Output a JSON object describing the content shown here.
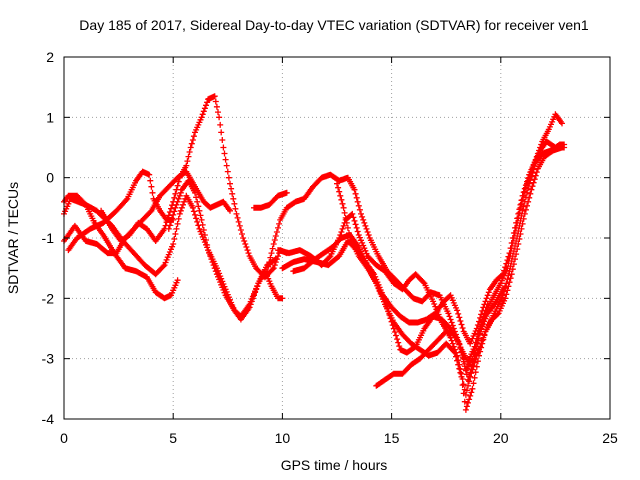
{
  "chart_data": {
    "type": "scatter",
    "title": "Day 185 of 2017, Sidereal Day-to-day VTEC variation (SDTVAR) for receiver ven1",
    "xlabel": "GPS time / hours",
    "ylabel": "SDTVAR / TECUs",
    "xlim": [
      0,
      25
    ],
    "ylim": [
      -4,
      2
    ],
    "xticks": [
      0,
      5,
      10,
      15,
      20,
      25
    ],
    "yticks": [
      -4,
      -3,
      -2,
      -1,
      0,
      1,
      2
    ],
    "xtick_labels": [
      "0",
      "5",
      "10",
      "15",
      "20",
      "25"
    ],
    "ytick_labels": [
      "-4",
      "-3",
      "-2",
      "-1",
      "0",
      "1",
      "2"
    ],
    "grid": true,
    "marker": "+",
    "color": "#ff0000",
    "series": [
      {
        "points": [
          [
            0.0,
            -0.6
          ],
          [
            0.3,
            -0.35
          ],
          [
            1.0,
            -0.45
          ],
          [
            1.5,
            -0.55
          ],
          [
            2.2,
            -0.8
          ],
          [
            2.7,
            -1.05
          ],
          [
            3.2,
            -1.25
          ],
          [
            3.7,
            -1.45
          ],
          [
            4.2,
            -1.6
          ],
          [
            4.6,
            -1.45
          ],
          [
            5.0,
            -1.1
          ],
          [
            5.3,
            -0.6
          ],
          [
            5.6,
            -0.3
          ],
          [
            5.9,
            -0.5
          ],
          [
            6.2,
            -0.85
          ],
          [
            6.6,
            -1.2
          ],
          [
            7.0,
            -1.5
          ],
          [
            7.4,
            -1.85
          ],
          [
            7.8,
            -2.2
          ],
          [
            8.1,
            -2.35
          ],
          [
            8.5,
            -2.15
          ],
          [
            8.9,
            -1.75
          ],
          [
            9.3,
            -1.45
          ],
          [
            9.7,
            -1.35
          ]
        ]
      },
      {
        "points": [
          [
            0.0,
            -0.4
          ],
          [
            0.2,
            -0.3
          ],
          [
            0.6,
            -0.3
          ],
          [
            1.0,
            -0.45
          ],
          [
            1.4,
            -0.75
          ],
          [
            1.8,
            -0.95
          ],
          [
            2.3,
            -1.25
          ],
          [
            2.8,
            -1.5
          ],
          [
            3.3,
            -1.55
          ],
          [
            3.8,
            -1.65
          ],
          [
            4.2,
            -1.9
          ],
          [
            4.6,
            -2.0
          ],
          [
            4.9,
            -1.95
          ],
          [
            5.2,
            -1.7
          ]
        ]
      },
      {
        "points": [
          [
            0.2,
            -1.2
          ],
          [
            0.6,
            -1.0
          ],
          [
            1.2,
            -0.85
          ],
          [
            1.8,
            -0.75
          ],
          [
            2.4,
            -0.55
          ],
          [
            2.9,
            -0.35
          ],
          [
            3.3,
            -0.05
          ],
          [
            3.6,
            0.1
          ],
          [
            3.9,
            0.05
          ],
          [
            4.1,
            -0.35
          ],
          [
            4.4,
            -0.55
          ],
          [
            4.7,
            -0.7
          ],
          [
            5.0,
            -0.7
          ]
        ]
      },
      {
        "points": [
          [
            0.0,
            -1.05
          ],
          [
            0.5,
            -0.8
          ],
          [
            1.0,
            -1.05
          ],
          [
            1.5,
            -1.1
          ],
          [
            2.0,
            -1.25
          ],
          [
            2.4,
            -1.25
          ],
          [
            2.8,
            -1.0
          ],
          [
            3.2,
            -0.85
          ],
          [
            3.6,
            -0.7
          ],
          [
            4.0,
            -0.55
          ],
          [
            4.4,
            -0.3
          ],
          [
            4.8,
            -0.15
          ],
          [
            5.2,
            0.0
          ],
          [
            5.6,
            0.1
          ],
          [
            6.0,
            -0.15
          ],
          [
            6.4,
            -0.4
          ],
          [
            6.7,
            -0.5
          ],
          [
            7.0,
            -0.45
          ],
          [
            7.3,
            -0.4
          ],
          [
            7.6,
            -0.55
          ]
        ]
      },
      {
        "points": [
          [
            1.7,
            -0.55
          ],
          [
            2.2,
            -0.85
          ],
          [
            2.6,
            -1.05
          ],
          [
            3.0,
            -0.95
          ],
          [
            3.4,
            -0.75
          ],
          [
            3.8,
            -0.85
          ],
          [
            4.2,
            -1.05
          ],
          [
            4.6,
            -0.85
          ],
          [
            5.0,
            -0.4
          ],
          [
            5.3,
            0.0
          ],
          [
            5.6,
            0.2
          ],
          [
            5.8,
            0.5
          ],
          [
            6.0,
            0.75
          ],
          [
            6.3,
            1.0
          ],
          [
            6.6,
            1.3
          ],
          [
            6.9,
            1.35
          ],
          [
            7.1,
            1.0
          ],
          [
            7.3,
            0.5
          ],
          [
            7.6,
            -0.1
          ],
          [
            7.9,
            -0.6
          ],
          [
            8.2,
            -1.0
          ],
          [
            8.5,
            -1.3
          ],
          [
            8.8,
            -1.5
          ],
          [
            9.2,
            -1.65
          ],
          [
            9.6,
            -1.5
          ],
          [
            9.9,
            -1.2
          ],
          [
            10.2,
            -1.25
          ]
        ]
      },
      {
        "points": [
          [
            4.8,
            -0.85
          ],
          [
            5.1,
            -0.5
          ],
          [
            5.4,
            -0.2
          ],
          [
            5.7,
            -0.05
          ],
          [
            6.0,
            -0.25
          ],
          [
            6.3,
            -0.7
          ],
          [
            6.6,
            -1.2
          ],
          [
            7.0,
            -1.6
          ],
          [
            7.4,
            -1.95
          ],
          [
            7.8,
            -2.2
          ],
          [
            8.1,
            -2.3
          ],
          [
            8.5,
            -2.1
          ],
          [
            8.9,
            -1.75
          ],
          [
            9.2,
            -1.55
          ],
          [
            9.5,
            -1.8
          ],
          [
            9.8,
            -2.0
          ],
          [
            10.0,
            -2.0
          ]
        ]
      },
      {
        "points": [
          [
            8.7,
            -0.5
          ],
          [
            9.0,
            -0.5
          ],
          [
            9.4,
            -0.45
          ],
          [
            9.8,
            -0.3
          ],
          [
            10.2,
            -0.25
          ]
        ]
      },
      {
        "points": [
          [
            9.3,
            -1.55
          ],
          [
            9.6,
            -1.1
          ],
          [
            9.9,
            -0.7
          ],
          [
            10.2,
            -0.5
          ],
          [
            10.6,
            -0.4
          ],
          [
            11.0,
            -0.35
          ],
          [
            11.4,
            -0.15
          ],
          [
            11.8,
            0.0
          ],
          [
            12.2,
            0.05
          ],
          [
            12.6,
            -0.05
          ],
          [
            13.0,
            0.0
          ],
          [
            13.3,
            -0.2
          ],
          [
            13.6,
            -0.6
          ],
          [
            14.0,
            -1.0
          ],
          [
            14.4,
            -1.3
          ],
          [
            14.8,
            -1.55
          ],
          [
            15.2,
            -1.7
          ],
          [
            15.6,
            -1.85
          ],
          [
            16.0,
            -2.0
          ],
          [
            16.4,
            -2.05
          ],
          [
            16.8,
            -1.9
          ],
          [
            17.2,
            -1.95
          ],
          [
            17.6,
            -2.25
          ],
          [
            18.0,
            -2.65
          ],
          [
            18.3,
            -3.0
          ],
          [
            18.5,
            -3.35
          ],
          [
            18.8,
            -3.0
          ],
          [
            19.1,
            -2.5
          ],
          [
            19.4,
            -2.15
          ],
          [
            19.7,
            -1.95
          ],
          [
            20.0,
            -1.75
          ],
          [
            20.3,
            -1.5
          ],
          [
            20.6,
            -1.0
          ],
          [
            20.9,
            -0.5
          ],
          [
            21.2,
            -0.1
          ],
          [
            21.5,
            0.2
          ],
          [
            21.8,
            0.45
          ],
          [
            22.1,
            0.6
          ],
          [
            22.5,
            0.5
          ],
          [
            22.9,
            0.5
          ]
        ]
      },
      {
        "points": [
          [
            9.8,
            -1.2
          ],
          [
            10.3,
            -1.25
          ],
          [
            10.8,
            -1.2
          ],
          [
            11.3,
            -1.3
          ],
          [
            11.8,
            -1.45
          ],
          [
            12.2,
            -1.3
          ],
          [
            12.6,
            -1.0
          ],
          [
            12.9,
            -0.7
          ],
          [
            13.2,
            -0.6
          ],
          [
            13.5,
            -0.95
          ],
          [
            13.9,
            -1.3
          ],
          [
            14.3,
            -1.45
          ],
          [
            14.7,
            -1.55
          ],
          [
            15.1,
            -1.75
          ],
          [
            15.5,
            -1.85
          ],
          [
            15.8,
            -1.7
          ],
          [
            16.1,
            -1.6
          ],
          [
            16.5,
            -1.75
          ],
          [
            16.9,
            -2.05
          ],
          [
            17.3,
            -2.4
          ],
          [
            17.7,
            -2.65
          ],
          [
            18.0,
            -2.95
          ],
          [
            18.2,
            -3.25
          ],
          [
            18.4,
            -3.6
          ],
          [
            18.6,
            -3.3
          ],
          [
            18.9,
            -2.95
          ],
          [
            19.3,
            -2.55
          ],
          [
            19.7,
            -2.25
          ],
          [
            20.1,
            -1.95
          ],
          [
            20.4,
            -1.55
          ],
          [
            20.7,
            -1.05
          ],
          [
            21.0,
            -0.55
          ],
          [
            21.3,
            -0.1
          ],
          [
            21.6,
            0.25
          ],
          [
            21.9,
            0.4
          ],
          [
            22.3,
            0.45
          ],
          [
            22.7,
            0.55
          ],
          [
            22.9,
            0.55
          ]
        ]
      },
      {
        "points": [
          [
            10.0,
            -1.5
          ],
          [
            10.5,
            -1.4
          ],
          [
            11.0,
            -1.35
          ],
          [
            11.6,
            -1.4
          ],
          [
            12.1,
            -1.45
          ],
          [
            12.6,
            -1.3
          ],
          [
            13.0,
            -1.05
          ],
          [
            13.4,
            -1.2
          ],
          [
            13.8,
            -1.4
          ],
          [
            14.2,
            -1.6
          ],
          [
            14.6,
            -1.95
          ],
          [
            15.0,
            -2.15
          ],
          [
            15.4,
            -2.3
          ],
          [
            15.8,
            -2.4
          ],
          [
            16.2,
            -2.4
          ],
          [
            16.6,
            -2.35
          ],
          [
            17.0,
            -2.25
          ],
          [
            17.4,
            -2.05
          ],
          [
            17.7,
            -1.95
          ],
          [
            18.0,
            -2.2
          ],
          [
            18.3,
            -2.55
          ],
          [
            18.6,
            -2.75
          ],
          [
            18.9,
            -2.5
          ],
          [
            19.2,
            -2.15
          ],
          [
            19.5,
            -1.85
          ],
          [
            19.8,
            -1.7
          ],
          [
            20.1,
            -1.6
          ],
          [
            20.4,
            -1.25
          ],
          [
            20.7,
            -0.75
          ],
          [
            21.0,
            -0.3
          ],
          [
            21.3,
            0.05
          ],
          [
            21.6,
            0.3
          ],
          [
            21.9,
            0.6
          ],
          [
            22.2,
            0.8
          ],
          [
            22.5,
            1.05
          ],
          [
            22.8,
            0.9
          ]
        ]
      },
      {
        "points": [
          [
            10.5,
            -1.55
          ],
          [
            11.0,
            -1.5
          ],
          [
            11.5,
            -1.35
          ],
          [
            11.9,
            -1.25
          ],
          [
            12.3,
            -1.15
          ],
          [
            12.7,
            -1.0
          ],
          [
            13.1,
            -0.95
          ],
          [
            13.5,
            -1.15
          ],
          [
            13.9,
            -1.45
          ],
          [
            14.3,
            -1.75
          ],
          [
            14.7,
            -2.1
          ],
          [
            15.1,
            -2.4
          ],
          [
            15.5,
            -2.6
          ],
          [
            15.9,
            -2.75
          ],
          [
            16.3,
            -2.85
          ],
          [
            16.7,
            -2.95
          ],
          [
            17.1,
            -2.9
          ],
          [
            17.5,
            -2.75
          ],
          [
            17.9,
            -2.9
          ],
          [
            18.2,
            -3.3
          ],
          [
            18.4,
            -3.85
          ],
          [
            18.7,
            -3.5
          ],
          [
            19.0,
            -2.95
          ],
          [
            19.3,
            -2.55
          ],
          [
            19.6,
            -2.35
          ],
          [
            19.9,
            -2.25
          ],
          [
            20.2,
            -2.0
          ],
          [
            20.5,
            -1.6
          ],
          [
            20.8,
            -1.1
          ],
          [
            21.1,
            -0.6
          ],
          [
            21.4,
            -0.2
          ],
          [
            21.7,
            0.15
          ],
          [
            22.0,
            0.35
          ],
          [
            22.4,
            0.45
          ],
          [
            22.8,
            0.5
          ]
        ]
      },
      {
        "points": [
          [
            14.3,
            -3.45
          ],
          [
            14.7,
            -3.35
          ],
          [
            15.1,
            -3.25
          ],
          [
            15.5,
            -3.25
          ],
          [
            15.9,
            -3.1
          ],
          [
            16.3,
            -3.0
          ],
          [
            16.7,
            -2.85
          ],
          [
            17.1,
            -2.7
          ],
          [
            17.5,
            -2.55
          ],
          [
            17.9,
            -2.6
          ],
          [
            18.2,
            -2.85
          ],
          [
            18.5,
            -3.05
          ],
          [
            18.8,
            -2.8
          ],
          [
            19.1,
            -2.4
          ],
          [
            19.4,
            -2.1
          ]
        ]
      },
      {
        "points": [
          [
            12.5,
            -0.1
          ],
          [
            12.8,
            -0.5
          ],
          [
            13.1,
            -1.0
          ],
          [
            13.5,
            -1.3
          ],
          [
            13.9,
            -1.5
          ],
          [
            14.3,
            -1.75
          ],
          [
            14.7,
            -2.05
          ],
          [
            15.1,
            -2.5
          ],
          [
            15.4,
            -2.85
          ],
          [
            15.7,
            -2.9
          ],
          [
            16.1,
            -2.8
          ],
          [
            16.5,
            -2.5
          ],
          [
            16.9,
            -2.3
          ],
          [
            17.3,
            -2.35
          ],
          [
            17.7,
            -2.5
          ],
          [
            18.1,
            -2.75
          ],
          [
            18.4,
            -3.2
          ],
          [
            18.7,
            -3.0
          ],
          [
            19.0,
            -2.6
          ],
          [
            19.4,
            -2.25
          ],
          [
            19.8,
            -2.05
          ],
          [
            20.2,
            -1.8
          ]
        ]
      }
    ]
  }
}
